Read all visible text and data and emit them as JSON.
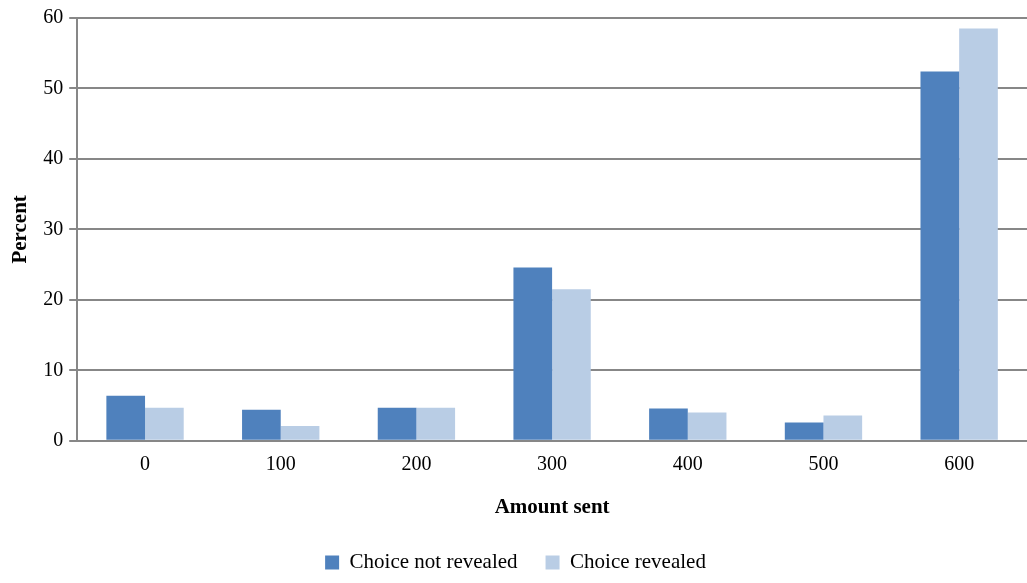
{
  "chart_data": {
    "type": "bar",
    "xlabel": "Amount sent",
    "ylabel": "Percent",
    "categories": [
      "0",
      "100",
      "200",
      "300",
      "400",
      "500",
      "600"
    ],
    "series": [
      {
        "name": "Choice not revealed",
        "color": "#4f81bd",
        "values": [
          6.4,
          4.4,
          4.7,
          24.6,
          4.6,
          2.6,
          52.4
        ]
      },
      {
        "name": "Choice revealed",
        "color": "#b9cde5",
        "values": [
          4.7,
          2.1,
          4.7,
          21.5,
          4.0,
          3.6,
          58.5
        ]
      }
    ],
    "ylim": [
      0,
      60
    ],
    "yticks": [
      0,
      10,
      20,
      30,
      40,
      50,
      60
    ],
    "grid": "y",
    "legend": "bottom"
  }
}
